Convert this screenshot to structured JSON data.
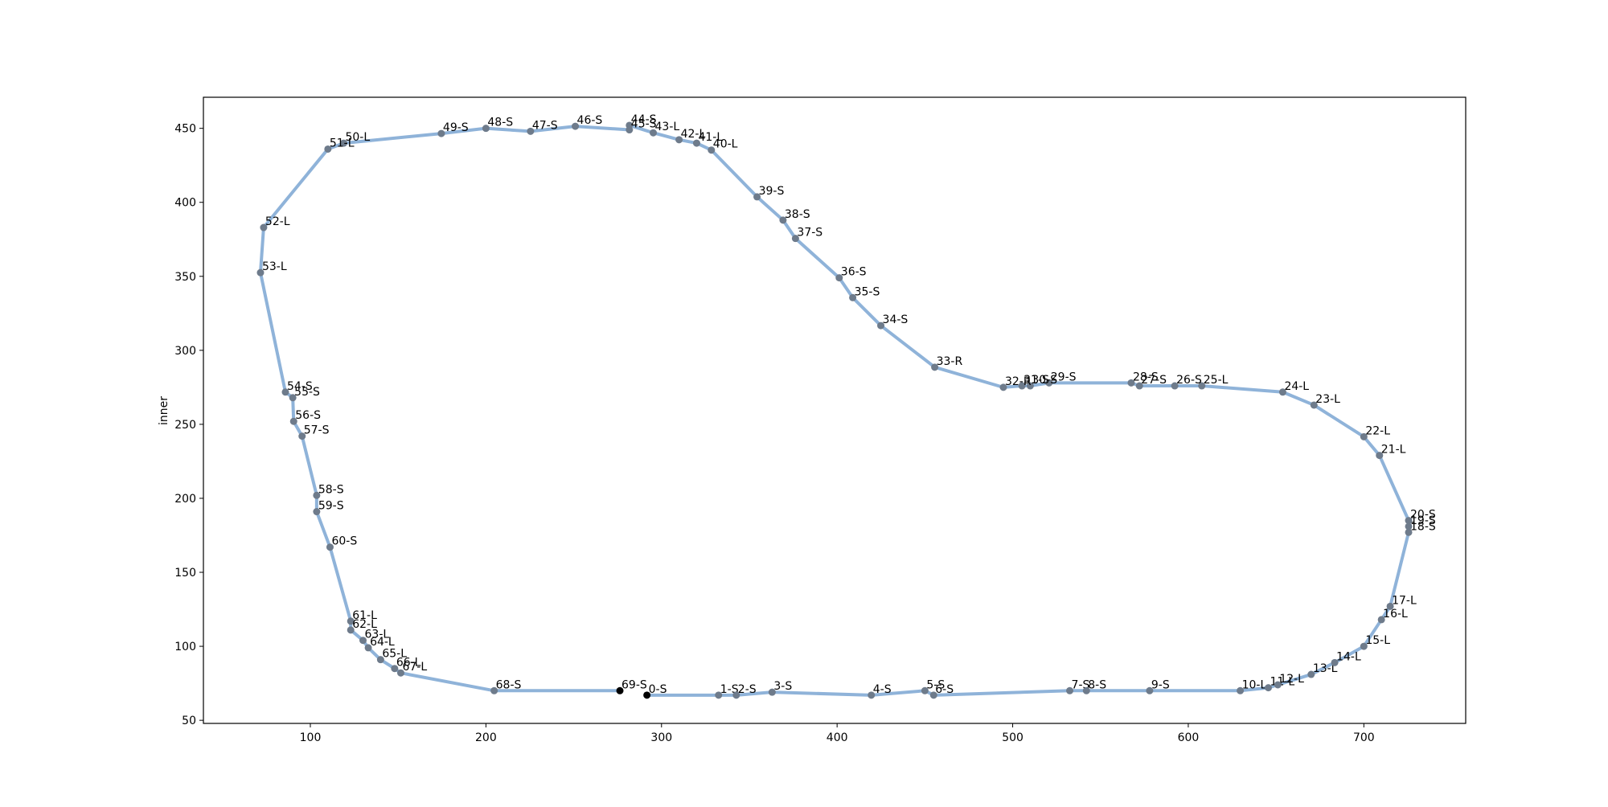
{
  "chart_data": {
    "type": "line",
    "ylabel": "inner",
    "labels": [
      "0-S",
      "1-S",
      "2-S",
      "3-S",
      "4-S",
      "5-S",
      "6-S",
      "7-S",
      "8-S",
      "9-S",
      "10-L",
      "11-L",
      "12-L",
      "13-L",
      "14-L",
      "15-L",
      "16-L",
      "17-L",
      "18-S",
      "19-S",
      "20-S",
      "21-L",
      "22-L",
      "23-L",
      "24-L",
      "25-L",
      "26-S",
      "27-S",
      "28-S",
      "29-S",
      "30-S",
      "31-S",
      "32-R",
      "33-R",
      "34-S",
      "35-S",
      "36-S",
      "37-S",
      "38-S",
      "39-S",
      "40-L",
      "41-L",
      "42-L",
      "43-L",
      "44-S",
      "45-S",
      "46-S",
      "47-S",
      "48-S",
      "49-S",
      "50-L",
      "51-L",
      "52-L",
      "53-L",
      "54-S",
      "55-S",
      "56-S",
      "57-S",
      "58-S",
      "59-S",
      "60-S",
      "61-L",
      "62-L",
      "63-L",
      "64-L",
      "65-L",
      "66-L",
      "67-L",
      "68-S",
      "69-S"
    ],
    "x": [
      291.7,
      332.5,
      342.6,
      363,
      419.5,
      450,
      455,
      532.5,
      542,
      578,
      629.6,
      645.6,
      651,
      670,
      683.4,
      700,
      710,
      715,
      725.5,
      725.5,
      725.5,
      708.9,
      700,
      671.6,
      653.8,
      607.7,
      592.3,
      572.2,
      567.5,
      520.7,
      510,
      505.3,
      494.7,
      455.6,
      424.9,
      408.9,
      401.2,
      376.3,
      369.2,
      354.4,
      328.4,
      320,
      310,
      295.3,
      281.7,
      281.7,
      250.9,
      225.4,
      200,
      174.6,
      119,
      110,
      73.4,
      71.6,
      85.8,
      90,
      90.5,
      95.3,
      103.6,
      103.6,
      111.2,
      123,
      123,
      130,
      133,
      140,
      148,
      151.5,
      204.7,
      276.3
    ],
    "values": [
      67,
      67,
      67,
      69,
      67,
      70,
      67,
      70,
      70,
      70,
      70,
      72,
      74,
      81,
      89,
      100,
      118,
      127,
      177,
      181,
      185,
      229,
      241.6,
      263,
      271.8,
      276,
      276,
      276,
      278,
      278,
      276,
      276,
      275,
      288.6,
      316.7,
      335.6,
      349,
      375.6,
      388,
      403.7,
      435.3,
      440,
      442.3,
      447,
      452,
      449,
      451.4,
      448,
      450,
      446.5,
      440,
      436,
      383,
      352.5,
      271.8,
      268,
      252,
      242,
      202,
      191,
      167,
      117,
      111,
      104,
      99,
      91,
      85,
      82,
      70,
      70
    ],
    "color": "#8fb3d9",
    "marker_color": "#6e7b8b",
    "endpoint_color": "#000000",
    "xlim": [
      39.1,
      758
    ],
    "ylim": [
      47.9,
      471
    ],
    "xticks": [
      100,
      200,
      300,
      400,
      500,
      600,
      700
    ],
    "yticks": [
      50,
      100,
      150,
      200,
      250,
      300,
      350,
      400,
      450
    ]
  }
}
